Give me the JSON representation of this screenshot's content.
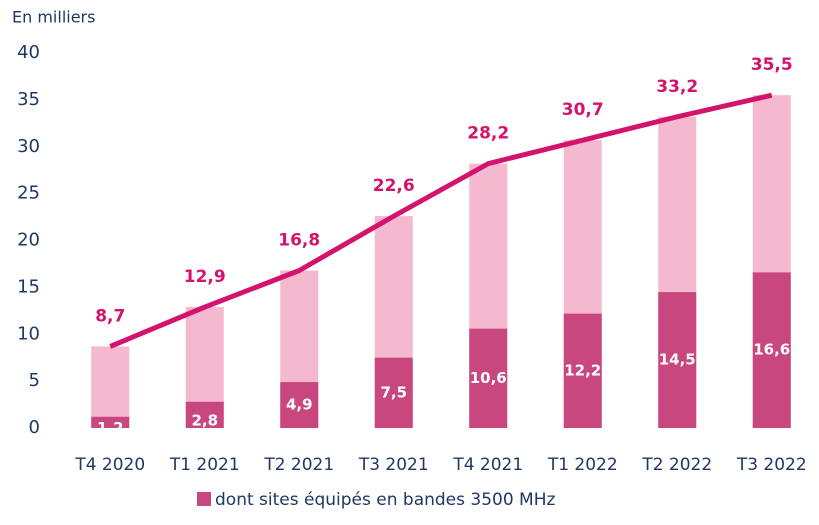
{
  "chart_data": {
    "type": "bar",
    "y_label": "En milliers",
    "categories": [
      "T4 2020",
      "T1 2021",
      "T2 2021",
      "T3 2021",
      "T4 2021",
      "T1 2022",
      "T2 2022",
      "T3 2022"
    ],
    "values": [
      8.7,
      12.9,
      16.8,
      22.6,
      28.2,
      30.7,
      33.2,
      35.5
    ],
    "value_labels": [
      "8,7",
      "12,9",
      "16,8",
      "22,6",
      "28,2",
      "30,7",
      "33,2",
      "35,5"
    ],
    "color": "#f4b8cf",
    "line_color": "#d3136d",
    "series": [
      {
        "name": "dont sites équipés en bandes 3500 MHz",
        "color": "#c9477f",
        "values": [
          1.2,
          2.8,
          4.9,
          7.5,
          10.6,
          12.2,
          14.5,
          16.6
        ],
        "value_labels": [
          "1,2",
          "2,8",
          "4,9",
          "7,5",
          "10,6",
          "12,2",
          "14,5",
          "16,6"
        ]
      }
    ],
    "ylim": [
      0,
      40
    ],
    "yticks": [
      0,
      5,
      10,
      15,
      20,
      25,
      30,
      35,
      40
    ],
    "grid": false,
    "legend": "bottom"
  }
}
